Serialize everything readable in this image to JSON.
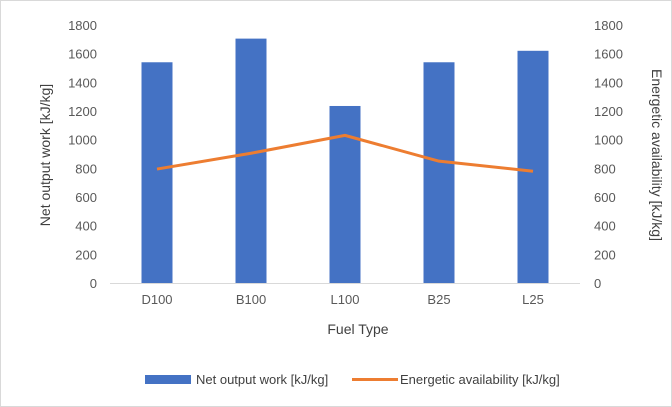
{
  "chart_data": {
    "type": "bar",
    "categories": [
      "D100",
      "B100",
      "L100",
      "B25",
      "L25"
    ],
    "series": [
      {
        "name": "Net output work [kJ/kg]",
        "type": "bar",
        "axis": "left",
        "color": "#4472c4",
        "values": [
          1540,
          1705,
          1235,
          1540,
          1620
        ]
      },
      {
        "name": "Energetic availability [kJ/kg]",
        "type": "line",
        "axis": "right",
        "color": "#ed7d31",
        "values": [
          795,
          905,
          1030,
          850,
          780
        ]
      }
    ],
    "xlabel": "Fuel Type",
    "ylabel": "Net output work [kJ/kg]",
    "y2label": "Energetic availability [kJ/kg]",
    "ylim": [
      0,
      1800
    ],
    "y2lim": [
      0,
      1800
    ],
    "yticks": [
      "0",
      "200",
      "400",
      "600",
      "800",
      "1000",
      "1200",
      "1400",
      "1600",
      "1800"
    ],
    "y2ticks": [
      "0",
      "200",
      "400",
      "600",
      "800",
      "1000",
      "1200",
      "1400",
      "1600",
      "1800"
    ],
    "grid": false,
    "legend": "bottom"
  }
}
